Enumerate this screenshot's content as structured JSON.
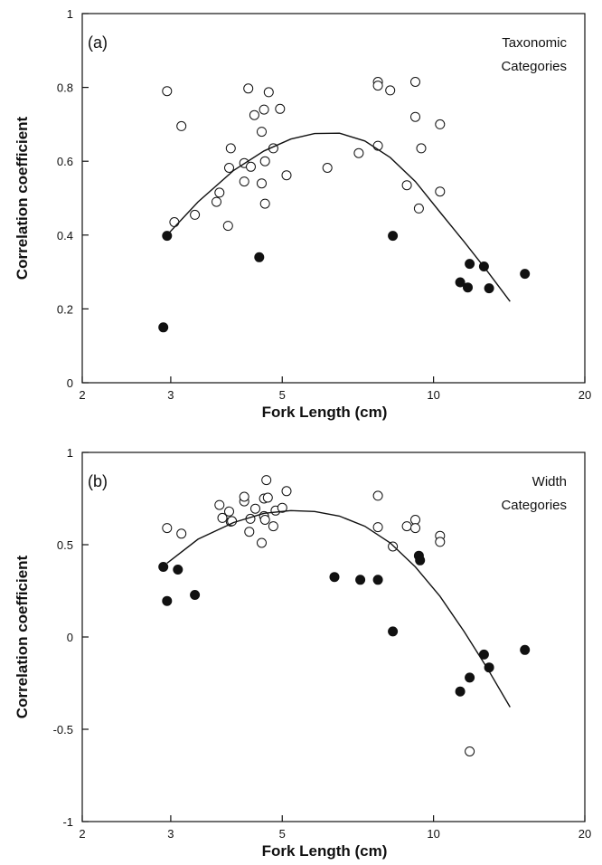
{
  "chart_data": [
    {
      "type": "scatter",
      "panel_label": "(a)",
      "annotation": [
        "Taxonomic",
        "Categories"
      ],
      "xlabel": "Fork Length (cm)",
      "ylabel": "Correlation coefficient",
      "x_scale": "log",
      "xlim": [
        2,
        20
      ],
      "ylim": [
        0,
        1
      ],
      "xticks": [
        2,
        3,
        5,
        10,
        20
      ],
      "yticks": [
        0,
        0.2,
        0.4,
        0.6,
        0.8,
        1
      ],
      "ytick_labels": [
        "0",
        "0.2",
        "0.4",
        "0.6",
        "0.8",
        "1"
      ],
      "series": [
        {
          "marker": "open-circle",
          "points": [
            [
              2.95,
              0.79
            ],
            [
              3.05,
              0.435
            ],
            [
              3.15,
              0.695
            ],
            [
              3.35,
              0.455
            ],
            [
              3.7,
              0.49
            ],
            [
              3.75,
              0.515
            ],
            [
              3.9,
              0.425
            ],
            [
              3.92,
              0.582
            ],
            [
              3.95,
              0.635
            ],
            [
              4.2,
              0.545
            ],
            [
              4.2,
              0.595
            ],
            [
              4.28,
              0.797
            ],
            [
              4.33,
              0.585
            ],
            [
              4.4,
              0.725
            ],
            [
              4.55,
              0.54
            ],
            [
              4.55,
              0.68
            ],
            [
              4.6,
              0.74
            ],
            [
              4.62,
              0.485
            ],
            [
              4.62,
              0.6
            ],
            [
              4.7,
              0.787
            ],
            [
              4.8,
              0.635
            ],
            [
              4.95,
              0.742
            ],
            [
              5.1,
              0.562
            ],
            [
              6.15,
              0.582
            ],
            [
              7.1,
              0.622
            ],
            [
              7.75,
              0.815
            ],
            [
              7.75,
              0.805
            ],
            [
              7.75,
              0.642
            ],
            [
              8.2,
              0.792
            ],
            [
              8.85,
              0.535
            ],
            [
              9.2,
              0.815
            ],
            [
              9.2,
              0.72
            ],
            [
              9.35,
              0.472
            ],
            [
              9.45,
              0.635
            ],
            [
              10.3,
              0.518
            ],
            [
              10.3,
              0.7
            ]
          ]
        },
        {
          "marker": "filled-circle",
          "points": [
            [
              2.9,
              0.15
            ],
            [
              2.95,
              0.398
            ],
            [
              4.5,
              0.34
            ],
            [
              8.3,
              0.398
            ],
            [
              11.3,
              0.272
            ],
            [
              11.7,
              0.258
            ],
            [
              11.8,
              0.322
            ],
            [
              12.6,
              0.315
            ],
            [
              12.9,
              0.256
            ],
            [
              15.2,
              0.295
            ]
          ]
        },
        {
          "marker": "line",
          "points": [
            [
              2.95,
              0.4
            ],
            [
              3.4,
              0.49
            ],
            [
              4,
              0.575
            ],
            [
              4.6,
              0.628
            ],
            [
              5.2,
              0.66
            ],
            [
              5.8,
              0.675
            ],
            [
              6.5,
              0.676
            ],
            [
              7.3,
              0.655
            ],
            [
              8.2,
              0.61
            ],
            [
              9.2,
              0.545
            ],
            [
              10.3,
              0.462
            ],
            [
              11.5,
              0.382
            ],
            [
              12.8,
              0.302
            ],
            [
              14.2,
              0.22
            ]
          ]
        }
      ]
    },
    {
      "type": "scatter",
      "panel_label": "(b)",
      "annotation": [
        "Width",
        "Categories"
      ],
      "xlabel": "Fork Length (cm)",
      "ylabel": "Correlation coefficient",
      "x_scale": "log",
      "xlim": [
        2,
        20
      ],
      "ylim": [
        -1,
        1
      ],
      "xticks": [
        2,
        3,
        5,
        10,
        20
      ],
      "yticks": [
        -1,
        -0.5,
        0,
        0.5,
        1
      ],
      "ytick_labels": [
        "-1",
        "-0.5",
        "0",
        "0.5",
        "1"
      ],
      "series": [
        {
          "marker": "open-circle",
          "points": [
            [
              2.95,
              0.59
            ],
            [
              3.15,
              0.56
            ],
            [
              3.75,
              0.715
            ],
            [
              3.8,
              0.645
            ],
            [
              3.92,
              0.68
            ],
            [
              3.95,
              0.625
            ],
            [
              3.97,
              0.628
            ],
            [
              4.2,
              0.735
            ],
            [
              4.2,
              0.76
            ],
            [
              4.3,
              0.57
            ],
            [
              4.32,
              0.64
            ],
            [
              4.42,
              0.695
            ],
            [
              4.55,
              0.51
            ],
            [
              4.6,
              0.655
            ],
            [
              4.6,
              0.75
            ],
            [
              4.65,
              0.85
            ],
            [
              4.68,
              0.755
            ],
            [
              4.62,
              0.635
            ],
            [
              4.8,
              0.6
            ],
            [
              4.85,
              0.685
            ],
            [
              5.0,
              0.7
            ],
            [
              5.1,
              0.79
            ],
            [
              7.75,
              0.765
            ],
            [
              7.75,
              0.595
            ],
            [
              8.3,
              0.49
            ],
            [
              8.85,
              0.6
            ],
            [
              9.2,
              0.635
            ],
            [
              9.2,
              0.59
            ],
            [
              10.3,
              0.548
            ],
            [
              10.3,
              0.515
            ],
            [
              11.8,
              -0.62
            ]
          ]
        },
        {
          "marker": "filled-circle",
          "points": [
            [
              2.9,
              0.38
            ],
            [
              2.95,
              0.195
            ],
            [
              3.1,
              0.365
            ],
            [
              3.35,
              0.228
            ],
            [
              6.35,
              0.325
            ],
            [
              7.15,
              0.31
            ],
            [
              7.75,
              0.31
            ],
            [
              8.3,
              0.03
            ],
            [
              9.35,
              0.44
            ],
            [
              9.4,
              0.415
            ],
            [
              11.3,
              -0.295
            ],
            [
              11.8,
              -0.22
            ],
            [
              12.6,
              -0.095
            ],
            [
              12.9,
              -0.165
            ],
            [
              15.2,
              -0.07
            ]
          ]
        },
        {
          "marker": "line",
          "points": [
            [
              2.95,
              0.4
            ],
            [
              3.4,
              0.53
            ],
            [
              4,
              0.62
            ],
            [
              4.6,
              0.67
            ],
            [
              5.2,
              0.685
            ],
            [
              5.8,
              0.68
            ],
            [
              6.5,
              0.655
            ],
            [
              7.3,
              0.6
            ],
            [
              8.2,
              0.51
            ],
            [
              9.2,
              0.38
            ],
            [
              10.3,
              0.22
            ],
            [
              11.5,
              0.03
            ],
            [
              12.8,
              -0.17
            ],
            [
              14.2,
              -0.38
            ]
          ]
        }
      ]
    }
  ]
}
